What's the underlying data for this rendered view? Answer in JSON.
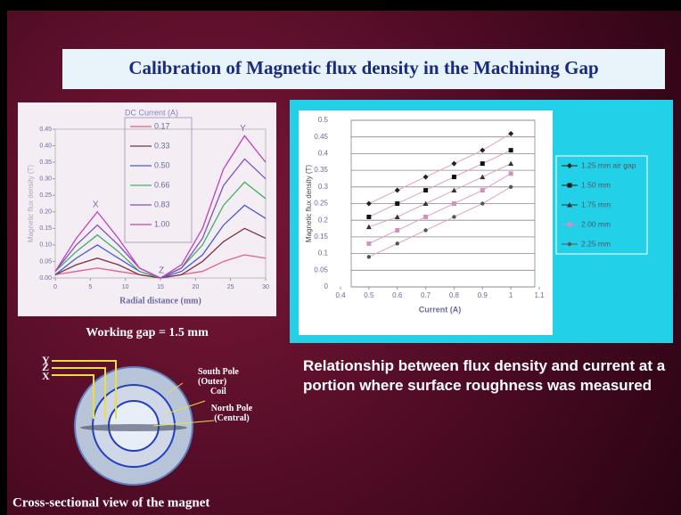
{
  "title": "Calibration of Magnetic flux density in the Machining Gap",
  "chart_data": [
    {
      "type": "line",
      "legend_title": "DC Current (A)",
      "x_label": "Radial distance (mm)",
      "y_label": "Magnetic flux density (T)",
      "annotations": [
        "X",
        "Y",
        "Z"
      ],
      "x": [
        0,
        3,
        6,
        9,
        12,
        15,
        18,
        21,
        24,
        27,
        30
      ],
      "series": [
        {
          "name": "0.17",
          "color": "#e0608a",
          "values": [
            0.01,
            0.02,
            0.03,
            0.02,
            0.01,
            0.0,
            0.01,
            0.02,
            0.05,
            0.07,
            0.06
          ]
        },
        {
          "name": "0.33",
          "color": "#7a3040",
          "values": [
            0.01,
            0.04,
            0.06,
            0.04,
            0.01,
            0.0,
            0.01,
            0.05,
            0.11,
            0.15,
            0.12
          ]
        },
        {
          "name": "0.50",
          "color": "#4a5ad0",
          "values": [
            0.01,
            0.06,
            0.1,
            0.06,
            0.02,
            0.0,
            0.02,
            0.07,
            0.16,
            0.22,
            0.18
          ]
        },
        {
          "name": "0.66",
          "color": "#40b060",
          "values": [
            0.02,
            0.08,
            0.13,
            0.08,
            0.02,
            0.0,
            0.03,
            0.1,
            0.22,
            0.29,
            0.24
          ]
        },
        {
          "name": "0.83",
          "color": "#8050c0",
          "values": [
            0.02,
            0.1,
            0.16,
            0.1,
            0.03,
            0.0,
            0.03,
            0.12,
            0.28,
            0.36,
            0.3
          ]
        },
        {
          "name": "1.00",
          "color": "#c040c0",
          "values": [
            0.02,
            0.12,
            0.2,
            0.12,
            0.03,
            0.0,
            0.04,
            0.15,
            0.33,
            0.43,
            0.35
          ]
        }
      ],
      "xlim": [
        0,
        30
      ],
      "xticks": [
        0,
        5,
        10,
        15,
        20,
        25,
        30
      ],
      "ylim": [
        0,
        0.45
      ],
      "yticks": [
        {
          "value": 0,
          "label": "0.00"
        },
        {
          "value": 0.05,
          "label": "0.05"
        },
        {
          "value": 0.1,
          "label": "0.10"
        },
        {
          "value": 0.15,
          "label": "0.15"
        },
        {
          "value": 0.2,
          "label": "0.20"
        },
        {
          "value": 0.25,
          "label": "0.25"
        },
        {
          "value": 0.3,
          "label": "0.30"
        },
        {
          "value": 0.35,
          "label": "0.35"
        },
        {
          "value": 0.4,
          "label": "0.40"
        },
        {
          "value": 0.45,
          "label": "0.45"
        }
      ]
    },
    {
      "type": "scatter",
      "x_label": "Current (A)",
      "y_label": "Magnetic flux density (T)",
      "line_color": "#e0a0c8",
      "grid": true,
      "x": [
        0.5,
        0.6,
        0.7,
        0.8,
        0.9,
        1
      ],
      "series": [
        {
          "name": "1.25 mm air gap",
          "color": "#222222",
          "values": [
            0.25,
            0.29,
            0.33,
            0.37,
            0.41,
            0.46
          ]
        },
        {
          "name": "1.50 mm",
          "color": "#111111",
          "values": [
            0.21,
            0.25,
            0.29,
            0.33,
            0.37,
            0.41
          ]
        },
        {
          "name": "1.75 mm",
          "color": "#333333",
          "values": [
            0.18,
            0.21,
            0.25,
            0.29,
            0.33,
            0.37
          ]
        },
        {
          "name": "2.00 mm",
          "color": "#d090c0",
          "values": [
            0.13,
            0.17,
            0.21,
            0.25,
            0.29,
            0.34
          ]
        },
        {
          "name": "2.25 mm",
          "color": "#555555",
          "values": [
            0.09,
            0.13,
            0.17,
            0.21,
            0.25,
            0.3
          ]
        }
      ],
      "xlim": [
        0.4,
        1.1
      ],
      "xticks": [
        0.4,
        0.5,
        0.6,
        0.7,
        0.8,
        0.9,
        1,
        1.1
      ],
      "ylim": [
        0,
        0.5
      ],
      "yticks": [
        0,
        0.05,
        0.1,
        0.15,
        0.2,
        0.25,
        0.3,
        0.35,
        0.4,
        0.45,
        0.5
      ]
    }
  ],
  "working_gap": "Working gap = 1.5 mm",
  "description": "Relationship between flux density and current at a portion where surface roughness was measured",
  "diagram": {
    "markers": [
      "Y",
      "Z",
      "X"
    ],
    "labels": [
      "South Pole (Outer)",
      "Coil",
      "North Pole (Central)"
    ]
  },
  "caption": "Cross-sectional view of the magnet"
}
